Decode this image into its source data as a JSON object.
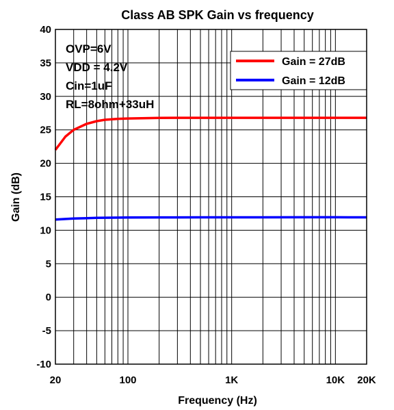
{
  "chart_data": {
    "type": "line",
    "title": "Class AB SPK Gain vs frequency",
    "xlabel": "Frequency (Hz)",
    "ylabel": "Gain (dB)",
    "x_scale": "log",
    "xlim": [
      20,
      20000
    ],
    "ylim": [
      -10,
      40
    ],
    "grid": true,
    "legend_position": "top-right",
    "y_ticks": [
      {
        "value": -10,
        "label": "-10"
      },
      {
        "value": -5,
        "label": "-5"
      },
      {
        "value": 0,
        "label": "0"
      },
      {
        "value": 5,
        "label": "5"
      },
      {
        "value": 10,
        "label": "10"
      },
      {
        "value": 15,
        "label": "15"
      },
      {
        "value": 20,
        "label": "20"
      },
      {
        "value": 25,
        "label": "25"
      },
      {
        "value": 30,
        "label": "30"
      },
      {
        "value": 35,
        "label": "35"
      },
      {
        "value": 40,
        "label": "40"
      }
    ],
    "x_ticks": [
      {
        "value": 20,
        "label": "20"
      },
      {
        "value": 100,
        "label": "100"
      },
      {
        "value": 1000,
        "label": "1K"
      },
      {
        "value": 10000,
        "label": "10K"
      },
      {
        "value": 20000,
        "label": "20K"
      }
    ],
    "annotations": [
      "OVP=6V",
      "VDD = 4.2V",
      "Cin=1uF",
      "RL=8ohm+33uH"
    ],
    "series": [
      {
        "name": "Gain = 27dB",
        "color": "#ff0000",
        "x": [
          20,
          25,
          30,
          40,
          50,
          60,
          80,
          100,
          150,
          200,
          300,
          500,
          1000,
          2000,
          5000,
          10000,
          20000
        ],
        "y": [
          22.0,
          24.0,
          25.0,
          25.9,
          26.3,
          26.5,
          26.65,
          26.7,
          26.75,
          26.78,
          26.8,
          26.8,
          26.8,
          26.8,
          26.8,
          26.8,
          26.8
        ]
      },
      {
        "name": "Gain = 12dB",
        "color": "#0000ff",
        "x": [
          20,
          30,
          50,
          100,
          200,
          500,
          1000,
          5000,
          10000,
          20000
        ],
        "y": [
          11.6,
          11.75,
          11.85,
          11.9,
          11.92,
          11.93,
          11.93,
          11.94,
          11.94,
          11.93
        ]
      }
    ]
  }
}
